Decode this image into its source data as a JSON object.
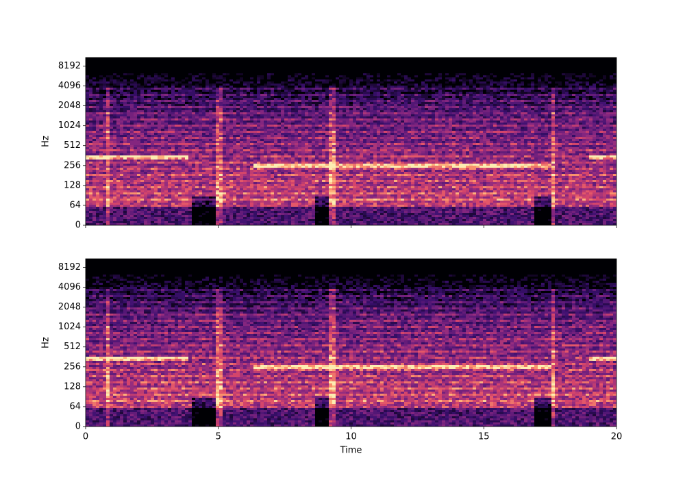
{
  "chart_data": [
    {
      "type": "spectrogram",
      "ylabel": "Hz",
      "colormap": "magma",
      "xlim": [
        0,
        20
      ],
      "xticks": [
        0,
        5,
        10,
        15,
        20
      ],
      "show_xticklabels": false,
      "ylim": [
        0,
        11025
      ],
      "yticks": [
        0,
        64,
        128,
        256,
        512,
        1024,
        2048,
        4096,
        8192
      ],
      "yscale": "symlog",
      "linthresh": 64
    },
    {
      "type": "spectrogram",
      "ylabel": "Hz",
      "xlabel": "Time",
      "colormap": "magma",
      "xlim": [
        0,
        20
      ],
      "xticks": [
        0,
        5,
        10,
        15,
        20
      ],
      "show_xticklabels": true,
      "ylim": [
        0,
        11025
      ],
      "yticks": [
        0,
        64,
        128,
        256,
        512,
        1024,
        2048,
        4096,
        8192
      ],
      "yscale": "symlog",
      "linthresh": 64
    }
  ]
}
